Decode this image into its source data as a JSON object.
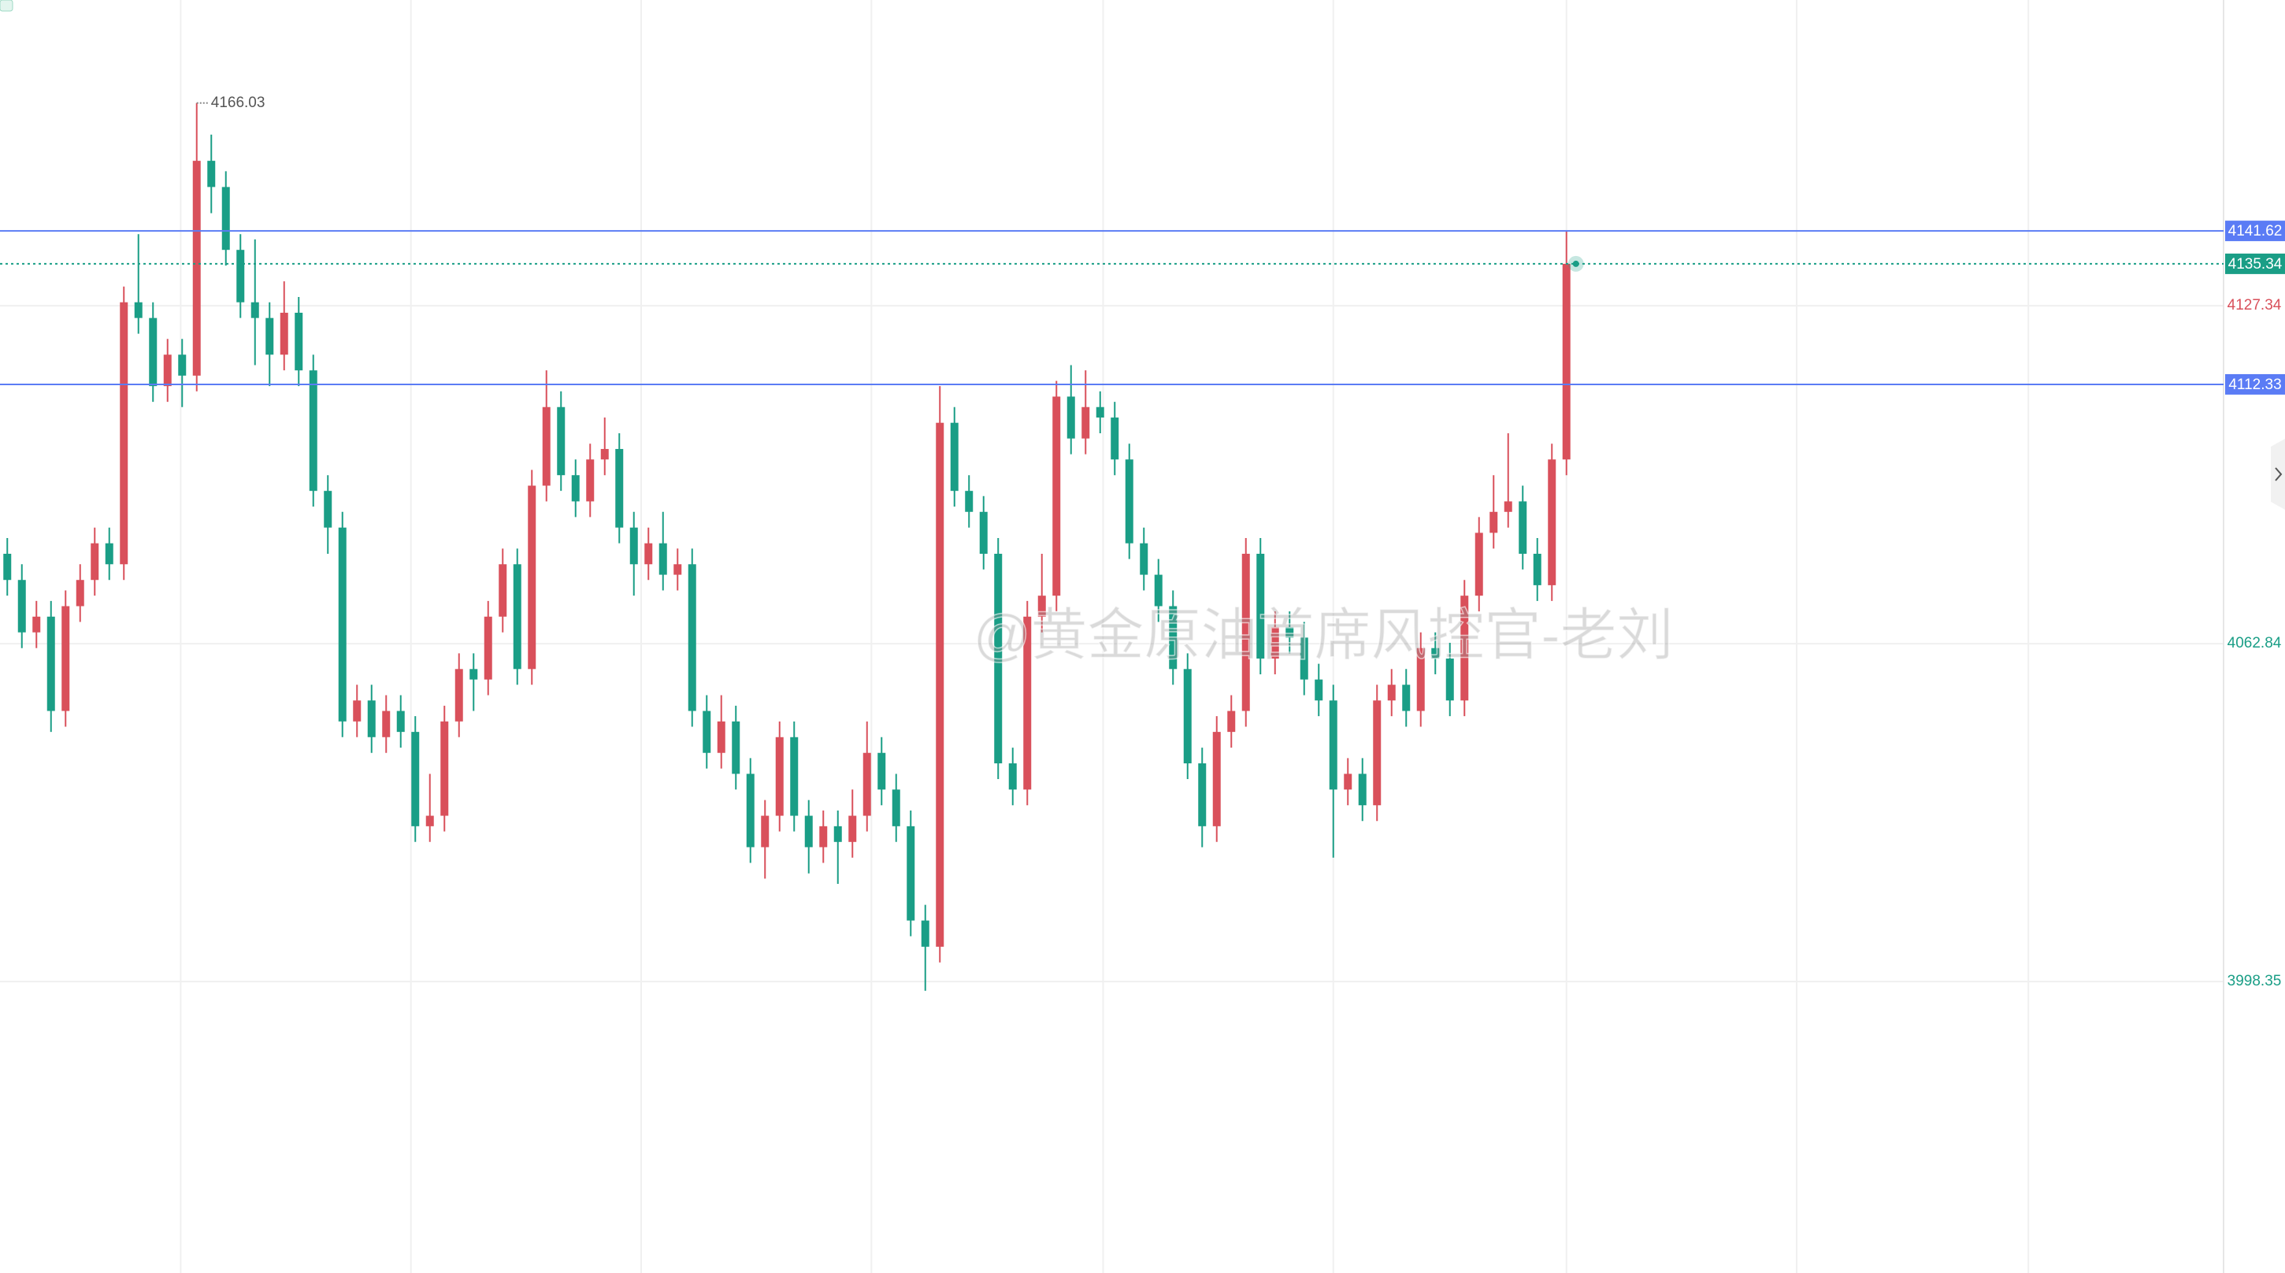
{
  "chart_data": {
    "type": "candlestick",
    "up_color": "#d9505b",
    "down_color": "#1a9e86",
    "ylim": [
      3942.73,
      4185.69
    ],
    "yticks": [
      4127.34,
      4062.84,
      3998.35
    ],
    "ytick_colors": [
      "#d9505b",
      "#1a9e86",
      "#1a9e86"
    ],
    "grid": true,
    "open": [
      4080,
      4075,
      4065,
      4068,
      4050,
      4070,
      4075,
      4082,
      4078,
      4128,
      4125,
      4112,
      4118,
      4114,
      4155,
      4150,
      4138,
      4128,
      4125,
      4118,
      4126,
      4115,
      4092,
      4085,
      4048,
      4052,
      4045,
      4050,
      4046,
      4028,
      4030,
      4048,
      4058,
      4056,
      4068,
      4078,
      4058,
      4093,
      4108,
      4095,
      4090,
      4098,
      4100,
      4085,
      4078,
      4082,
      4076,
      4078,
      4050,
      4042,
      4048,
      4038,
      4024,
      4030,
      4045,
      4030,
      4024,
      4028,
      4025,
      4030,
      4042,
      4035,
      4028,
      4010,
      4005,
      4105,
      4092,
      4088,
      4080,
      4040,
      4035,
      4068,
      4072,
      4110,
      4102,
      4108,
      4106,
      4098,
      4082,
      4076,
      4070,
      4058,
      4040,
      4028,
      4046,
      4050,
      4080,
      4060,
      4066,
      4064,
      4056,
      4052,
      4035,
      4038,
      4032,
      4052,
      4055,
      4050,
      4062,
      4060,
      4052,
      4072,
      4084,
      4088,
      4090,
      4080,
      4074,
      4098
    ],
    "high": [
      4083,
      4078,
      4071,
      4071,
      4073,
      4078,
      4085,
      4085,
      4131,
      4141,
      4128,
      4121,
      4121,
      4166.03,
      4160,
      4153,
      4141,
      4140,
      4128,
      4132,
      4129,
      4118,
      4095,
      4088,
      4055,
      4055,
      4053,
      4053,
      4049,
      4038,
      4051,
      4061,
      4061,
      4071,
      4081,
      4081,
      4096,
      4115,
      4111,
      4098,
      4101,
      4106,
      4103,
      4088,
      4085,
      4088,
      4081,
      4081,
      4053,
      4053,
      4051,
      4041,
      4033,
      4048,
      4048,
      4033,
      4031,
      4031,
      4035,
      4048,
      4045,
      4038,
      4031,
      4013,
      4112,
      4108,
      4095,
      4091,
      4083,
      4043,
      4071,
      4080,
      4113,
      4116,
      4115,
      4111,
      4109,
      4101,
      4085,
      4079,
      4073,
      4061,
      4043,
      4049,
      4053,
      4083,
      4083,
      4069,
      4069,
      4067,
      4059,
      4055,
      4041,
      4041,
      4055,
      4058,
      4058,
      4065,
      4065,
      4063,
      4075,
      4087,
      4095,
      4103,
      4093,
      4083,
      4101,
      4141.62
    ],
    "low": [
      4072,
      4062,
      4062,
      4046,
      4047,
      4067,
      4072,
      4075,
      4075,
      4122,
      4109,
      4109,
      4108,
      4111,
      4145,
      4135,
      4125,
      4116,
      4112,
      4115,
      4112,
      4089,
      4080,
      4045,
      4045,
      4042,
      4042,
      4043,
      4025,
      4025,
      4027,
      4045,
      4050,
      4053,
      4065,
      4055,
      4055,
      4090,
      4092,
      4087,
      4087,
      4095,
      4082,
      4072,
      4075,
      4073,
      4073,
      4047,
      4039,
      4039,
      4035,
      4021,
      4018,
      4027,
      4027,
      4019,
      4021,
      4017,
      4022,
      4027,
      4032,
      4025,
      4007,
      3996.6,
      4002,
      4089,
      4085,
      4077,
      4037,
      4032,
      4032,
      4065,
      4069,
      4099,
      4099,
      4103,
      4095,
      4079,
      4073,
      4067,
      4055,
      4037,
      4024,
      4025,
      4043,
      4047,
      4057,
      4057,
      4061,
      4053,
      4049,
      4022,
      4032,
      4029,
      4029,
      4049,
      4047,
      4047,
      4057,
      4049,
      4049,
      4069,
      4081,
      4085,
      4077,
      4071,
      4071,
      4095
    ],
    "close": [
      4075,
      4065,
      4068,
      4050,
      4070,
      4075,
      4082,
      4078,
      4128,
      4125,
      4112,
      4118,
      4114,
      4155,
      4150,
      4138,
      4128,
      4125,
      4118,
      4126,
      4115,
      4092,
      4085,
      4048,
      4052,
      4045,
      4050,
      4046,
      4028,
      4030,
      4048,
      4058,
      4056,
      4068,
      4078,
      4058,
      4093,
      4108,
      4095,
      4090,
      4098,
      4100,
      4085,
      4078,
      4082,
      4076,
      4078,
      4050,
      4042,
      4048,
      4038,
      4024,
      4030,
      4045,
      4030,
      4024,
      4028,
      4025,
      4030,
      4042,
      4035,
      4028,
      4010,
      4005,
      4105,
      4092,
      4088,
      4080,
      4040,
      4035,
      4068,
      4072,
      4110,
      4102,
      4108,
      4106,
      4098,
      4082,
      4076,
      4070,
      4058,
      4040,
      4028,
      4046,
      4050,
      4080,
      4060,
      4066,
      4064,
      4056,
      4052,
      4035,
      4038,
      4032,
      4052,
      4055,
      4050,
      4062,
      4060,
      4052,
      4072,
      4084,
      4088,
      4090,
      4080,
      4074,
      4098,
      4135.34
    ],
    "levels": [
      {
        "value": 4141.62,
        "color": "#5b7cf5",
        "style": "solid"
      },
      {
        "value": 4112.33,
        "color": "#5b7cf5",
        "style": "solid"
      },
      {
        "value": 4135.34,
        "color": "#1a9e86",
        "style": "dotted"
      }
    ],
    "watermark": "@黄金原油首席风控官-老刘"
  }
}
